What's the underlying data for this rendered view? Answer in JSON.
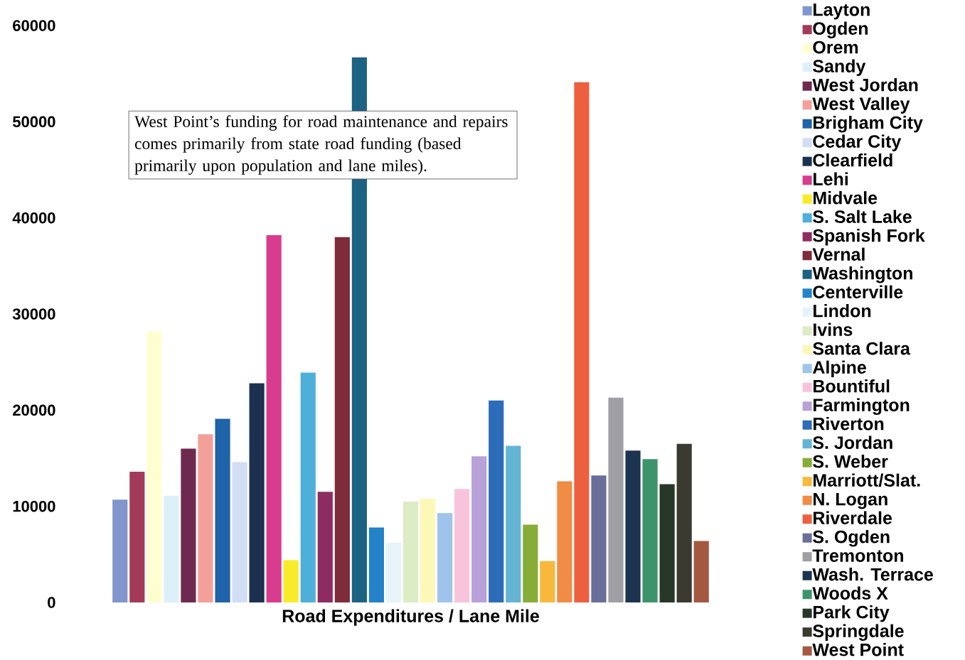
{
  "chart_data": {
    "type": "bar",
    "xlabel": "Road Expenditures / Lane Mile",
    "categories": [
      null
    ],
    "ylim": [
      0,
      60000
    ],
    "yticks": [
      0,
      10000,
      20000,
      30000,
      40000,
      50000,
      60000
    ],
    "legend": "right",
    "annotations": [
      "West Point’s funding for road maintenance and repairs comes primarily from state road funding (based primarily upon population and lane miles)."
    ],
    "series": [
      {
        "name": "Layton",
        "color": "#8096cc",
        "values": [
          10700
        ]
      },
      {
        "name": "Ogden",
        "color": "#a33a5a",
        "values": [
          13600
        ]
      },
      {
        "name": "Orem",
        "color": "#ffffd0",
        "values": [
          28200
        ]
      },
      {
        "name": "Sandy",
        "color": "#dcf0fa",
        "values": [
          11100
        ]
      },
      {
        "name": "West Jordan",
        "color": "#6e2a4e",
        "values": [
          16000
        ]
      },
      {
        "name": "West Valley",
        "color": "#f4a09a",
        "values": [
          17500
        ]
      },
      {
        "name": "Brigham City",
        "color": "#1f63a8",
        "values": [
          19100
        ]
      },
      {
        "name": "Cedar City",
        "color": "#d2def4",
        "values": [
          14600
        ]
      },
      {
        "name": "Clearfield",
        "color": "#1c3150",
        "values": [
          22800
        ]
      },
      {
        "name": "Lehi",
        "color": "#d83c8e",
        "values": [
          38200
        ]
      },
      {
        "name": "Midvale",
        "color": "#f8ec2a",
        "values": [
          4400
        ]
      },
      {
        "name": "S. Salt Lake",
        "color": "#4eb0d8",
        "values": [
          23900
        ]
      },
      {
        "name": "Spanish Fork",
        "color": "#8c2c62",
        "values": [
          11500
        ]
      },
      {
        "name": "Vernal",
        "color": "#7e2c38",
        "values": [
          38000
        ]
      },
      {
        "name": "Washington",
        "color": "#1c6282",
        "values": [
          56700
        ]
      },
      {
        "name": "Centerville",
        "color": "#2382c8",
        "values": [
          7800
        ]
      },
      {
        "name": "Lindon",
        "color": "#e6f4fa",
        "values": [
          6200
        ]
      },
      {
        "name": "Ivins",
        "color": "#dcecc4",
        "values": [
          10500
        ]
      },
      {
        "name": "Santa Clara",
        "color": "#fcf8b8",
        "values": [
          10800
        ]
      },
      {
        "name": "Alpine",
        "color": "#9ec4ec",
        "values": [
          9300
        ]
      },
      {
        "name": "Bountiful",
        "color": "#f8c4dc",
        "values": [
          11800
        ]
      },
      {
        "name": "Farmington",
        "color": "#b8a0d8",
        "values": [
          15200
        ]
      },
      {
        "name": "Riverton",
        "color": "#2c6cb8",
        "values": [
          21000
        ]
      },
      {
        "name": "S. Jordan",
        "color": "#64b4d4",
        "values": [
          16300
        ]
      },
      {
        "name": "S. Weber",
        "color": "#88ac38",
        "values": [
          8100
        ]
      },
      {
        "name": "Marriott/Slat.",
        "color": "#f8b83c",
        "values": [
          4300
        ]
      },
      {
        "name": "N. Logan",
        "color": "#f08c44",
        "values": [
          12600
        ]
      },
      {
        "name": "Riverdale",
        "color": "#ec6040",
        "values": [
          54100
        ]
      },
      {
        "name": "S. Ogden",
        "color": "#6a6e9a",
        "values": [
          13200
        ]
      },
      {
        "name": "Tremonton",
        "color": "#a0a0a4",
        "values": [
          21300
        ]
      },
      {
        "name": "Wash. Terrace",
        "color": "#1c3450",
        "values": [
          15800
        ]
      },
      {
        "name": "Woods X",
        "color": "#3e946a",
        "values": [
          14900
        ]
      },
      {
        "name": "Park City",
        "color": "#283828",
        "values": [
          12300
        ]
      },
      {
        "name": "Springdale",
        "color": "#3a3a30",
        "values": [
          16500
        ]
      },
      {
        "name": "West Point",
        "color": "#a45840",
        "values": [
          6400
        ]
      }
    ]
  }
}
